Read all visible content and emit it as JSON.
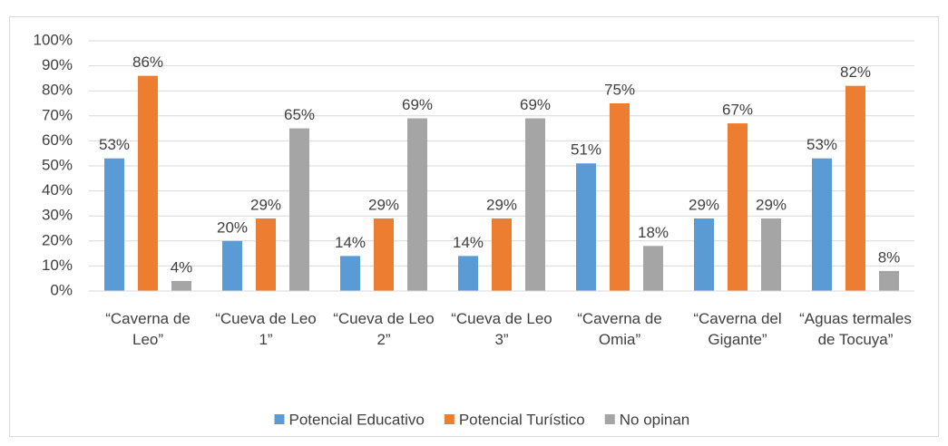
{
  "chart_data": {
    "type": "bar",
    "categories": [
      "“Caverna de Leo”",
      "“Cueva de Leo 1”",
      "“Cueva de Leo 2”",
      "“Cueva de Leo 3”",
      "“Caverna de Omia”",
      "“Caverna del Gigante”",
      "“Aguas termales de Tocuya”"
    ],
    "series": [
      {
        "name": "Potencial Educativo",
        "color": "#5b9bd5",
        "values": [
          53,
          20,
          14,
          14,
          51,
          29,
          53
        ],
        "value_labels": [
          "53%",
          "20%",
          "14%",
          "14%",
          "51%",
          "29%",
          "53%"
        ]
      },
      {
        "name": "Potencial Turístico",
        "color": "#ed7d31",
        "values": [
          86,
          29,
          29,
          29,
          75,
          67,
          82
        ],
        "value_labels": [
          "86%",
          "29%",
          "29%",
          "29%",
          "75%",
          "67%",
          "82%"
        ]
      },
      {
        "name": "No opinan",
        "color": "#a5a5a5",
        "values": [
          4,
          65,
          69,
          69,
          18,
          29,
          8
        ],
        "value_labels": [
          "4%",
          "65%",
          "69%",
          "69%",
          "18%",
          "29%",
          "8%"
        ]
      }
    ],
    "ylim": [
      0,
      100
    ],
    "yticks": [
      {
        "value": 0,
        "label": "0%"
      },
      {
        "value": 10,
        "label": "10%"
      },
      {
        "value": 20,
        "label": "20%"
      },
      {
        "value": 30,
        "label": "30%"
      },
      {
        "value": 40,
        "label": "40%"
      },
      {
        "value": 50,
        "label": "50%"
      },
      {
        "value": 60,
        "label": "60%"
      },
      {
        "value": 70,
        "label": "70%"
      },
      {
        "value": 80,
        "label": "80%"
      },
      {
        "value": 90,
        "label": "90%"
      },
      {
        "value": 100,
        "label": "100%"
      }
    ],
    "grid": true,
    "legend": "bottom"
  }
}
